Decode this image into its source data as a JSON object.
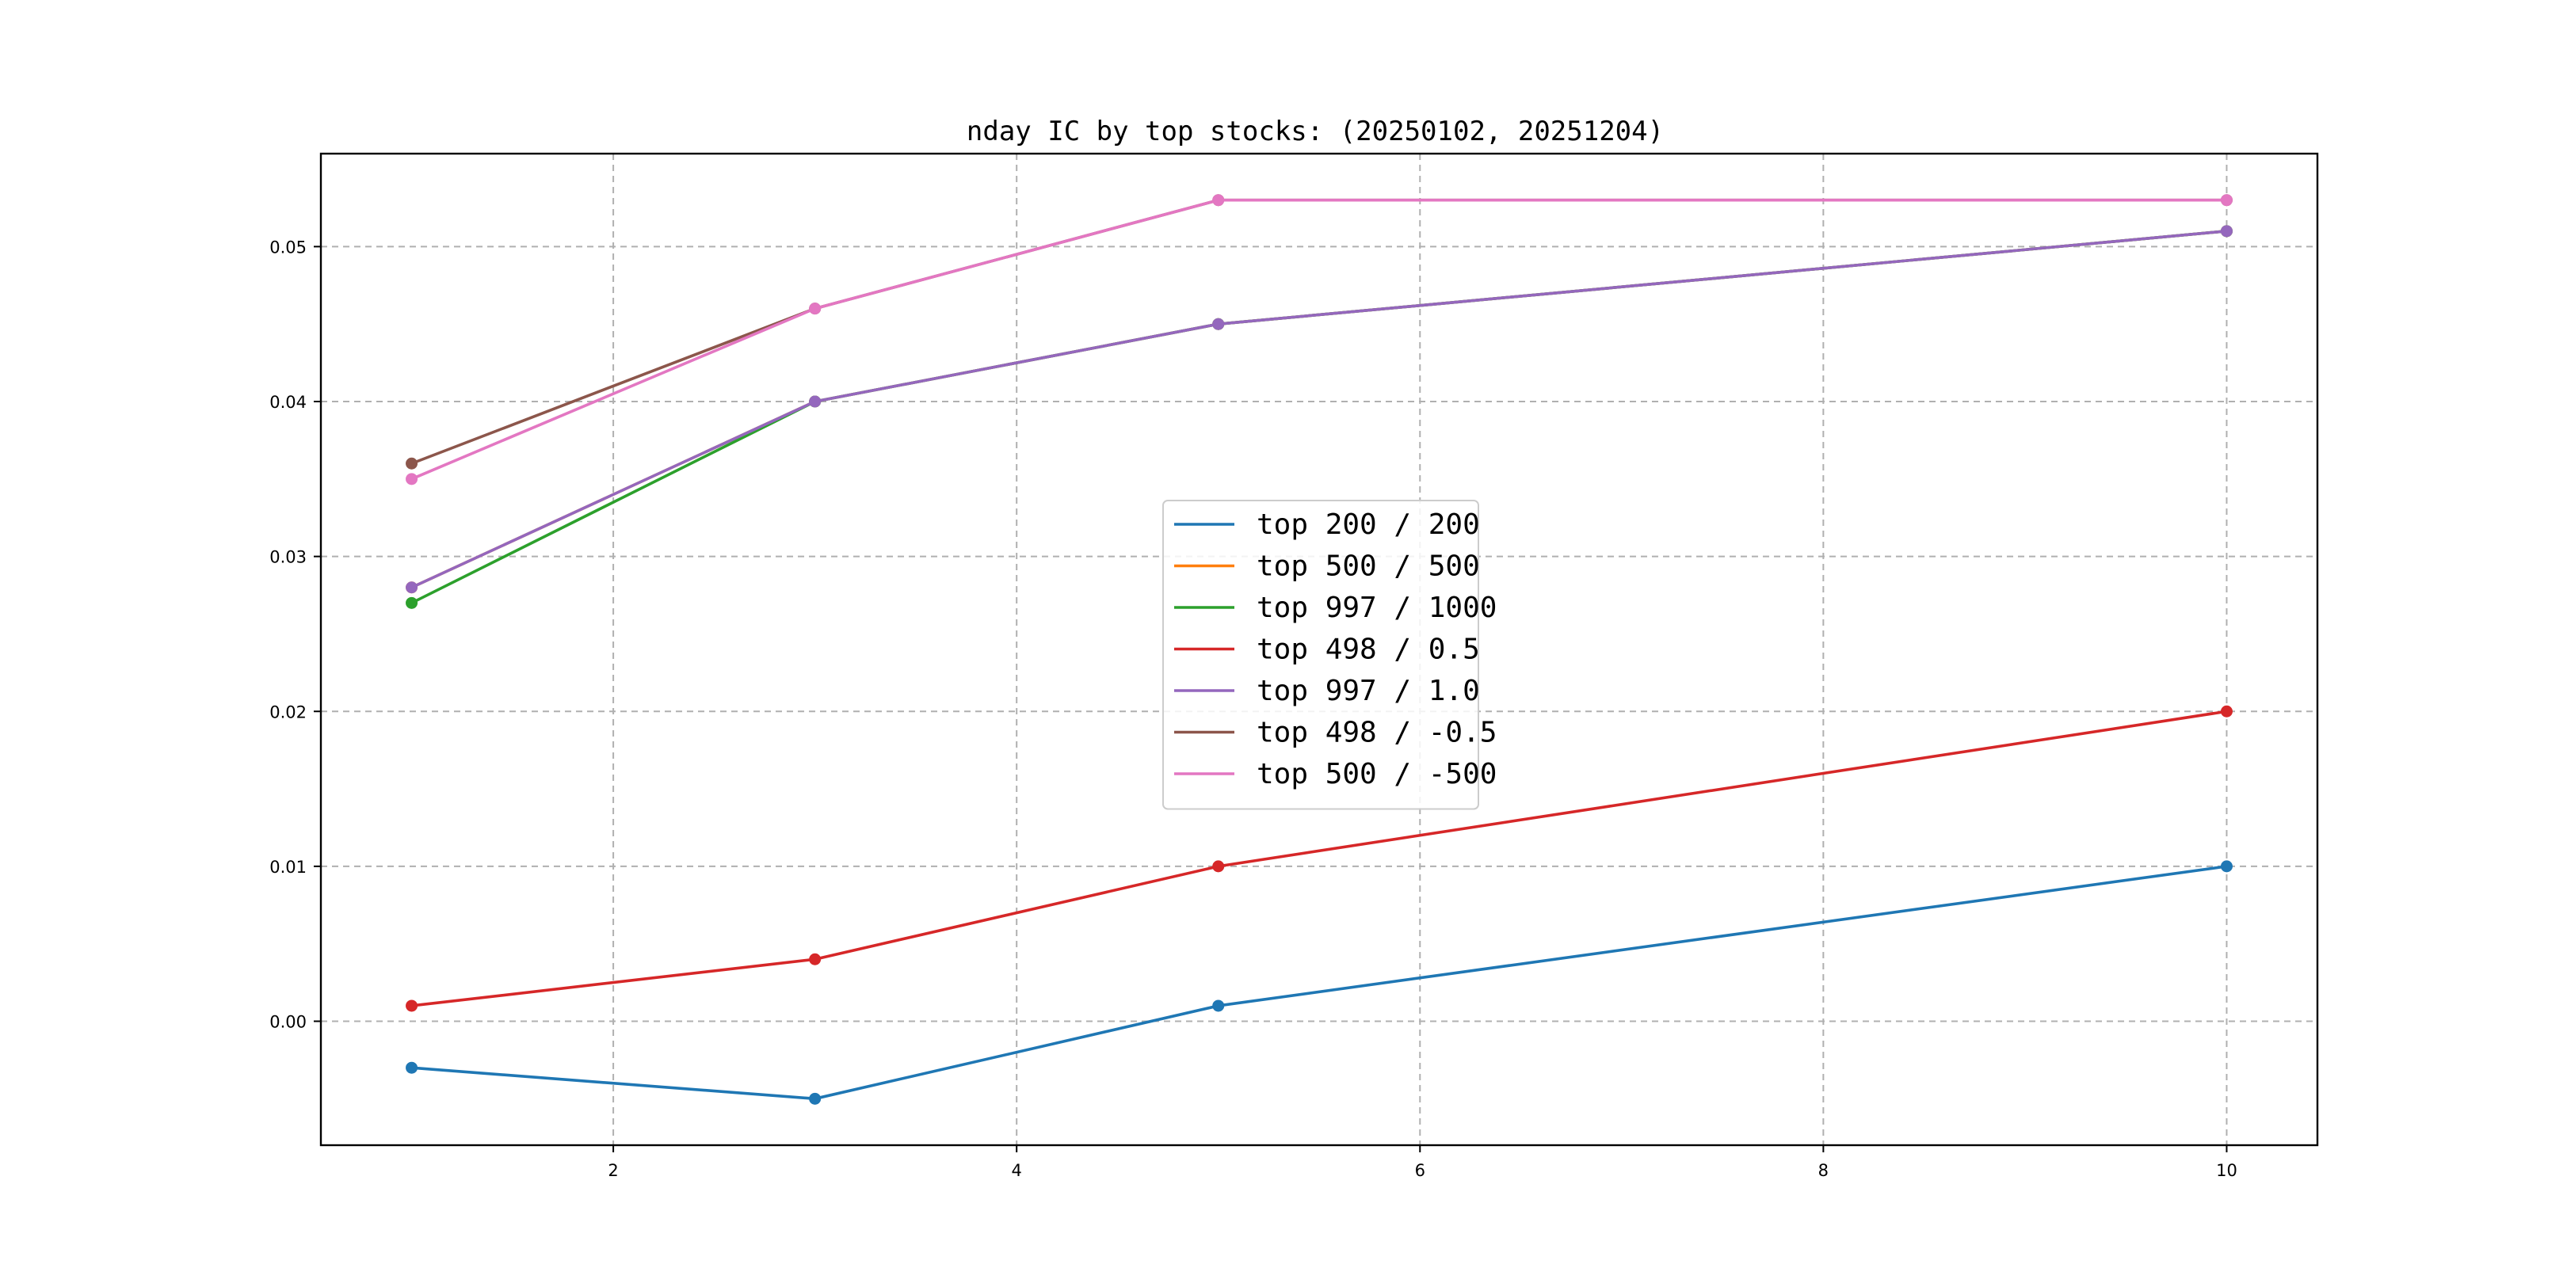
{
  "chart_data": {
    "type": "line",
    "title": "nday IC by top stocks: (20250102, 20251204)",
    "xlabel": "",
    "ylabel": "",
    "xlim": [
      0.55,
      10.45
    ],
    "ylim": [
      -0.008,
      0.056
    ],
    "xticks": [
      2,
      4,
      6,
      8,
      10
    ],
    "xtick_labels": [
      "2",
      "4",
      "6",
      "8",
      "10"
    ],
    "yticks": [
      0.0,
      0.01,
      0.02,
      0.03,
      0.04,
      0.05
    ],
    "ytick_labels": [
      "0.00",
      "0.01",
      "0.02",
      "0.03",
      "0.04",
      "0.05"
    ],
    "grid": true,
    "legend_position": "center",
    "x": [
      1,
      3,
      5,
      10
    ],
    "series": [
      {
        "name": "top 200 / 200",
        "color": "#1f77b4",
        "values": [
          -0.003,
          -0.005,
          0.001,
          0.01
        ]
      },
      {
        "name": "top 500 / 500",
        "color": "#ff7f0e",
        "values": [
          0.028,
          0.04,
          0.045,
          0.051
        ]
      },
      {
        "name": "top 997 / 1000",
        "color": "#2ca02c",
        "values": [
          0.027,
          0.04,
          0.045,
          0.051
        ]
      },
      {
        "name": "top 498 / 0.5",
        "color": "#d62728",
        "values": [
          0.001,
          0.004,
          0.01,
          0.02
        ]
      },
      {
        "name": "top 997 / 1.0",
        "color": "#9467bd",
        "values": [
          0.028,
          0.04,
          0.045,
          0.051
        ]
      },
      {
        "name": "top 498 / -0.5",
        "color": "#8c564b",
        "values": [
          0.036,
          0.046,
          0.053,
          0.053
        ]
      },
      {
        "name": "top 500 / -500",
        "color": "#e377c2",
        "values": [
          0.035,
          0.046,
          0.053,
          0.053
        ]
      }
    ]
  }
}
